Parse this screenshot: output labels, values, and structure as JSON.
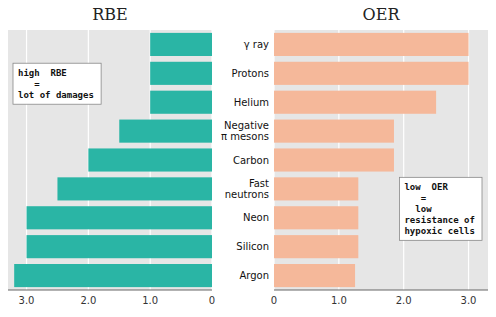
{
  "chart_data": [
    {
      "type": "bar",
      "orientation": "horizontal",
      "title": "RBE",
      "values": [
        1.0,
        1.0,
        1.0,
        1.5,
        2.0,
        2.5,
        3.0,
        3.0,
        3.2
      ],
      "color": "#2ab5a5",
      "xlim": [
        3.3,
        0
      ],
      "xticks": [
        0,
        {
          "value": 1.0,
          "label": "1.0"
        },
        {
          "value": 2.0,
          "label": "2.0"
        },
        {
          "value": 3.0,
          "label": "3.0"
        }
      ],
      "grid": true,
      "annotation": "high  RBE\n   =\nlot of damages"
    },
    {
      "type": "bar",
      "orientation": "horizontal",
      "title": "OER",
      "categories": [
        "γ ray",
        "Protons",
        "Helium",
        "Negative\nπ mesons",
        "Carbon",
        "Fast\nneutrons",
        "Neon",
        "Silicon",
        "Argon"
      ],
      "values": [
        3.0,
        3.0,
        2.5,
        1.85,
        1.85,
        1.3,
        1.3,
        1.3,
        1.25
      ],
      "color": "#f5b89a",
      "xlim": [
        0,
        3.3
      ],
      "xticks": [
        0,
        {
          "value": 1.0,
          "label": "1.0"
        },
        {
          "value": 2.0,
          "label": "2.0"
        },
        {
          "value": 3.0,
          "label": "3.0"
        }
      ],
      "grid": true,
      "annotation": "low  OER\n   =\n  low\nresistance of\nhypoxic cells"
    }
  ]
}
